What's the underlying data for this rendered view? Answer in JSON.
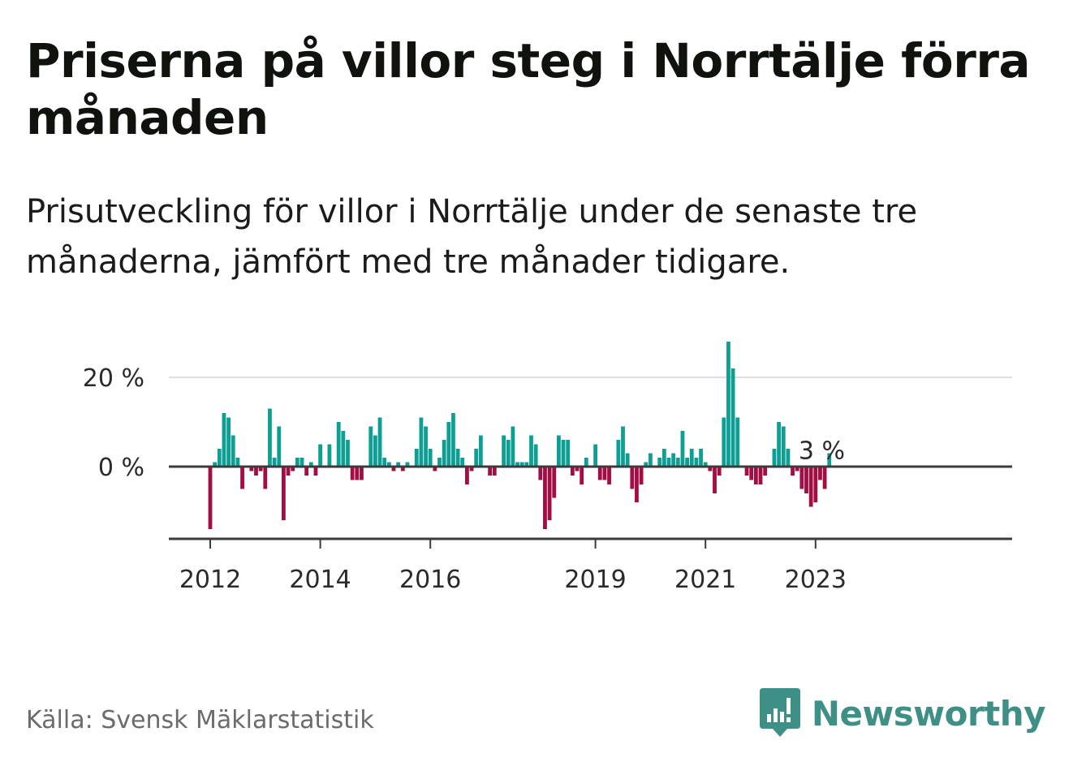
{
  "header": {
    "title": "Priserna på villor steg i Norrtälje förra månaden",
    "subtitle": "Prisutveckling för villor i Norrtälje under de senaste tre månaderna, jämfört med tre månader tidigare."
  },
  "footer": {
    "source": "Källa: Svensk Mäklarstatistik",
    "brand": "Newsworthy"
  },
  "colors": {
    "positive": "#0e9f94",
    "negative": "#a40d43",
    "axis": "#3b3b3b",
    "grid": "#dddddd",
    "brand": "#3e8f86"
  },
  "chart_data": {
    "type": "bar",
    "x_start": "2012-01",
    "x_end": "2023-02",
    "x_ticks": [
      "2012",
      "2014",
      "2016",
      "2019",
      "2021",
      "2023"
    ],
    "y_ticks": [
      "0 %",
      "20 %"
    ],
    "y_tick_values": [
      0,
      20
    ],
    "ylim": [
      -16,
      30
    ],
    "grid": true,
    "annotation": {
      "text": "3 %",
      "target": "2023-02"
    },
    "values": [
      -14,
      1,
      4,
      12,
      11,
      7,
      2,
      -5,
      0,
      -1,
      -2,
      -1,
      -5,
      13,
      2,
      9,
      -12,
      -2,
      -1,
      2,
      2,
      -2,
      1,
      -2,
      5,
      0,
      5,
      0,
      10,
      8,
      6,
      -3,
      -3,
      -3,
      0,
      9,
      7,
      11,
      2,
      1,
      -1,
      1,
      -1,
      1,
      0,
      4,
      11,
      9,
      4,
      -1,
      2,
      6,
      10,
      12,
      4,
      2,
      -4,
      -1,
      4,
      7,
      0,
      -2,
      -2,
      0,
      7,
      6,
      9,
      1,
      1,
      1,
      7,
      5,
      -3,
      -14,
      -12,
      -7,
      7,
      6,
      6,
      -2,
      -1,
      -4,
      2,
      0,
      5,
      -3,
      -3,
      -4,
      0,
      6,
      9,
      3,
      -5,
      -8,
      -4,
      1,
      3,
      0,
      2,
      4,
      2,
      3,
      2,
      8,
      2,
      4,
      2,
      4,
      1,
      -1,
      -6,
      -2,
      11,
      28,
      22,
      11,
      0,
      -2,
      -3,
      -4,
      -4,
      -2,
      0,
      4,
      10,
      9,
      4,
      -2,
      -1,
      -5,
      -6,
      -9,
      -8,
      -3,
      -5,
      3
    ]
  }
}
